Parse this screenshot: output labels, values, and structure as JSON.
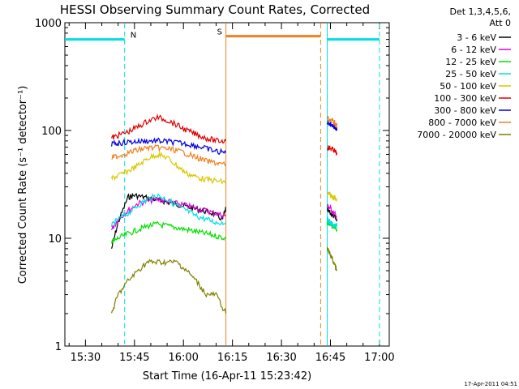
{
  "chart_data": {
    "type": "line",
    "title": "HESSI Observing Summary Count Rates, Corrected",
    "xlabel": "Start Time (16-Apr-11 15:23:42)",
    "ylabel": "Corrected Count Rate (s⁻¹ detector⁻¹)",
    "x_ticks": [
      "15:30",
      "15:45",
      "16:00",
      "16:15",
      "16:30",
      "16:45",
      "17:00"
    ],
    "y_ticks": [
      "1",
      "10",
      "100",
      "1000"
    ],
    "y_scale": "log",
    "ylim": [
      1,
      1000
    ],
    "xlim": [
      "15:23:42",
      "17:03:00"
    ],
    "grid": false,
    "legend_position": "top-right",
    "legend_header": [
      "Det 1,3,4,5,6,",
      "Att 0"
    ],
    "date_stamp": "17-Apr-2011 04:51",
    "series": [
      {
        "name": "3 - 6 keV",
        "color": "#000000",
        "segments": [
          {
            "x": [
              "15:38",
              "15:40",
              "15:43",
              "15:45",
              "15:48",
              "15:51",
              "15:54",
              "15:57",
              "16:00",
              "16:03",
              "16:06",
              "16:09",
              "16:12",
              "16:13"
            ],
            "y": [
              8,
              14,
              24,
              25,
              24,
              23,
              22,
              21,
              20,
              19,
              18,
              17,
              15,
              19
            ]
          },
          {
            "x": [
              "16:44",
              "16:45",
              "16:46",
              "16:47"
            ],
            "y": [
              18,
              17,
              16,
              15
            ]
          }
        ]
      },
      {
        "name": "6 - 12 keV",
        "color": "#e000e0",
        "segments": [
          {
            "x": [
              "15:38",
              "15:40",
              "15:43",
              "15:46",
              "15:49",
              "15:52",
              "15:55",
              "15:58",
              "16:01",
              "16:04",
              "16:07",
              "16:10",
              "16:13"
            ],
            "y": [
              12,
              15,
              18,
              21,
              22,
              23,
              22,
              21,
              20,
              19,
              18,
              17,
              16
            ]
          },
          {
            "x": [
              "16:44",
              "16:45",
              "16:46",
              "16:47"
            ],
            "y": [
              20,
              19,
              17,
              16
            ]
          }
        ]
      },
      {
        "name": "12 - 25 keV",
        "color": "#00e000",
        "segments": [
          {
            "x": [
              "15:38",
              "15:40",
              "15:43",
              "15:46",
              "15:49",
              "15:52",
              "15:55",
              "15:58",
              "16:01",
              "16:04",
              "16:07",
              "16:10",
              "16:13"
            ],
            "y": [
              9,
              10,
              11,
              12,
              13,
              13.5,
              13,
              12.5,
              12,
              11.5,
              11,
              10.5,
              10
            ]
          },
          {
            "x": [
              "16:44",
              "16:45",
              "16:46",
              "16:47"
            ],
            "y": [
              14,
              13,
              13,
              12
            ]
          }
        ]
      },
      {
        "name": "25 - 50 keV",
        "color": "#00e0e0",
        "segments": [
          {
            "x": [
              "15:38",
              "15:40",
              "15:43",
              "15:46",
              "15:49",
              "15:52",
              "15:55",
              "15:58",
              "16:01",
              "16:04",
              "16:07",
              "16:10",
              "16:13"
            ],
            "y": [
              13,
              15,
              17,
              20,
              23,
              25,
              23,
              20,
              18,
              16,
              15,
              14,
              14
            ]
          },
          {
            "x": [
              "16:44",
              "16:45",
              "16:46",
              "16:47"
            ],
            "y": [
              15,
              14,
              13,
              13
            ]
          }
        ]
      },
      {
        "name": "50 - 100 keV",
        "color": "#d8c800",
        "segments": [
          {
            "x": [
              "15:38",
              "15:40",
              "15:43",
              "15:46",
              "15:49",
              "15:52",
              "15:55",
              "15:58",
              "16:01",
              "16:04",
              "16:07",
              "16:10",
              "16:13"
            ],
            "y": [
              36,
              38,
              42,
              47,
              55,
              60,
              56,
              47,
              40,
              37,
              35,
              34,
              33
            ]
          },
          {
            "x": [
              "16:44",
              "16:45",
              "16:46",
              "16:47"
            ],
            "y": [
              26,
              25,
              24,
              23
            ]
          }
        ]
      },
      {
        "name": "100 - 300 keV",
        "color": "#e00000",
        "segments": [
          {
            "x": [
              "15:38",
              "15:40",
              "15:43",
              "15:46",
              "15:49",
              "15:52",
              "15:55",
              "15:58",
              "16:01",
              "16:04",
              "16:07",
              "16:10",
              "16:13"
            ],
            "y": [
              85,
              90,
              97,
              108,
              122,
              132,
              125,
              112,
              100,
              92,
              85,
              80,
              80
            ]
          },
          {
            "x": [
              "16:44",
              "16:45",
              "16:46",
              "16:47"
            ],
            "y": [
              70,
              68,
              66,
              60
            ]
          }
        ]
      },
      {
        "name": "300 - 800 keV",
        "color": "#0000e0",
        "segments": [
          {
            "x": [
              "15:38",
              "15:40",
              "15:43",
              "15:46",
              "15:49",
              "15:52",
              "15:55",
              "15:58",
              "16:01",
              "16:04",
              "16:07",
              "16:10",
              "16:13"
            ],
            "y": [
              75,
              76,
              78,
              79,
              80,
              80,
              79,
              77,
              75,
              72,
              68,
              64,
              62
            ]
          },
          {
            "x": [
              "16:44",
              "16:45",
              "16:46",
              "16:47"
            ],
            "y": [
              120,
              115,
              110,
              100
            ]
          }
        ]
      },
      {
        "name": "800 - 7000 keV",
        "color": "#f08020",
        "segments": [
          {
            "x": [
              "15:38",
              "15:40",
              "15:43",
              "15:46",
              "15:49",
              "15:52",
              "15:55",
              "15:58",
              "16:01",
              "16:04",
              "16:07",
              "16:10",
              "16:13"
            ],
            "y": [
              56,
              58,
              62,
              66,
              69,
              69,
              68,
              65,
              61,
              56,
              52,
              50,
              48
            ]
          },
          {
            "x": [
              "16:44",
              "16:45",
              "16:46",
              "16:47"
            ],
            "y": [
              130,
              125,
              120,
              110
            ]
          }
        ]
      },
      {
        "name": "7000 - 20000 keV",
        "color": "#808000",
        "segments": [
          {
            "x": [
              "15:38",
              "15:40",
              "15:43",
              "15:46",
              "15:49",
              "15:52",
              "15:55",
              "15:58",
              "16:01",
              "16:04",
              "16:07",
              "16:10",
              "16:13"
            ],
            "y": [
              2,
              3,
              4,
              5,
              6,
              6,
              6,
              6,
              5,
              4,
              3,
              3,
              2
            ]
          },
          {
            "x": [
              "16:44",
              "16:45",
              "16:46",
              "16:47"
            ],
            "y": [
              8,
              7,
              6,
              5
            ]
          }
        ]
      }
    ],
    "flags": [
      {
        "label": "N",
        "color": "#00e0e0",
        "segments": [
          [
            "15:23:42",
            "15:42"
          ],
          [
            "16:44",
            "17:00"
          ]
        ],
        "level": 700,
        "boundaries": [
          [
            "15:42",
            "dashed"
          ],
          [
            "16:44",
            "solid"
          ],
          [
            "17:00",
            "dashed"
          ]
        ]
      },
      {
        "label": "S",
        "color": "#f08020",
        "segments": [
          [
            "16:13",
            "16:42"
          ]
        ],
        "level": 750,
        "boundaries": [
          [
            "16:13",
            "solid"
          ],
          [
            "16:42",
            "dashed"
          ]
        ]
      }
    ]
  }
}
